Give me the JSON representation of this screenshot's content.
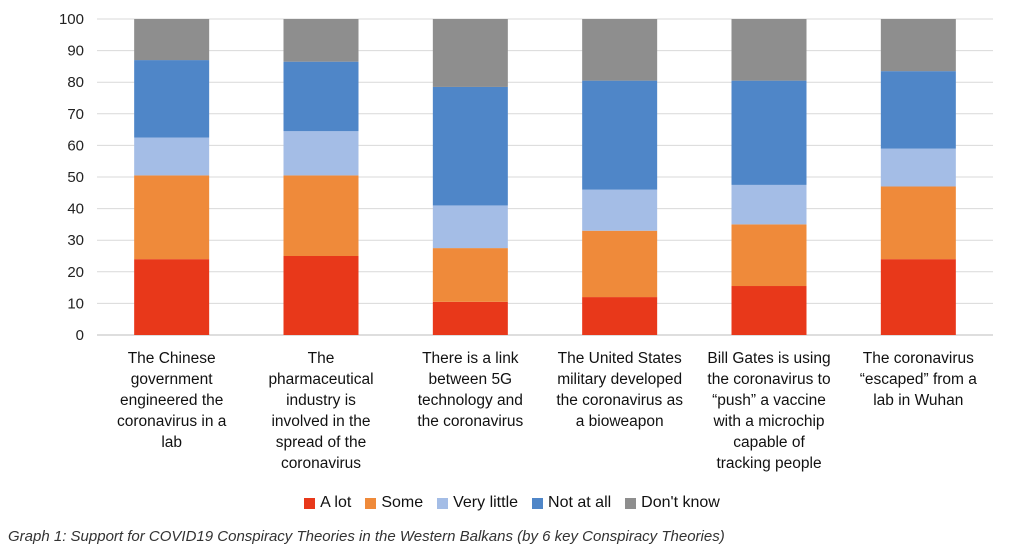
{
  "chart_data": {
    "type": "bar",
    "stacked": true,
    "categories": [
      "The Chinese government engineered the coronavirus in a lab",
      "The pharmaceutical industry is involved in the spread of the coronavirus",
      "There is a link between 5G technology and the coronavirus",
      "The United States military developed the coronavirus as a bioweapon",
      "Bill Gates is using the coronavirus to “push” a vaccine with a microchip capable of tracking people",
      "The coronavirus “escaped” from a lab in Wuhan"
    ],
    "category_lines": [
      [
        "The Chinese",
        "government",
        "engineered the",
        "coronavirus in a",
        "lab"
      ],
      [
        "The",
        "pharmaceutical",
        "industry is",
        "involved in the",
        "spread of the",
        "coronavirus"
      ],
      [
        "There is a link",
        "between 5G",
        "technology and",
        "the coronavirus"
      ],
      [
        "The United States",
        "military developed",
        "the coronavirus as",
        "a bioweapon"
      ],
      [
        "Bill Gates is using",
        "the coronavirus to",
        "“push” a vaccine",
        "with a microchip",
        "capable of",
        "tracking people"
      ],
      [
        "The coronavirus",
        "“escaped” from a",
        "lab in Wuhan"
      ]
    ],
    "series": [
      {
        "name": "A lot",
        "color": "#e8381a",
        "values": [
          24,
          25,
          10.5,
          12,
          15.5,
          24
        ]
      },
      {
        "name": "Some",
        "color": "#ef8a3a",
        "values": [
          26.5,
          25.5,
          17,
          21,
          19.5,
          23
        ]
      },
      {
        "name": "Very little",
        "color": "#a4bde6",
        "values": [
          12,
          14,
          13.5,
          13,
          12.5,
          12
        ]
      },
      {
        "name": "Not at all",
        "color": "#4f86c8",
        "values": [
          24.5,
          22,
          37.5,
          34.5,
          33,
          24.5
        ]
      },
      {
        "name": "Don't know",
        "color": "#8e8e8e",
        "values": [
          13,
          13.5,
          21.5,
          19.5,
          19.5,
          16.5
        ]
      }
    ],
    "yticks": [
      0,
      10,
      20,
      30,
      40,
      50,
      60,
      70,
      80,
      90,
      100
    ],
    "ylim": [
      0,
      100
    ],
    "xlabel": "",
    "ylabel": "",
    "grid": true,
    "legend_position": "bottom"
  },
  "caption": "Graph 1: Support for COVID19 Conspiracy Theories in the Western Balkans (by 6 key Conspiracy Theories)"
}
